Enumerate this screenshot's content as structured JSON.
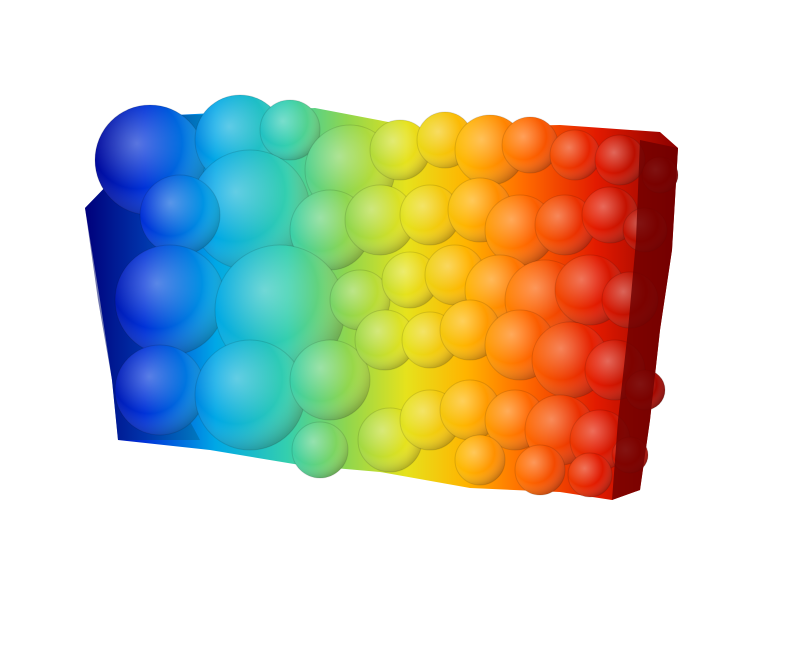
{
  "render": {
    "colormap": [
      "#00008f",
      "#0046ff",
      "#00c8e6",
      "#7cd65a",
      "#f0e21a",
      "#ff7a00",
      "#e21a00",
      "#7a0000"
    ]
  }
}
